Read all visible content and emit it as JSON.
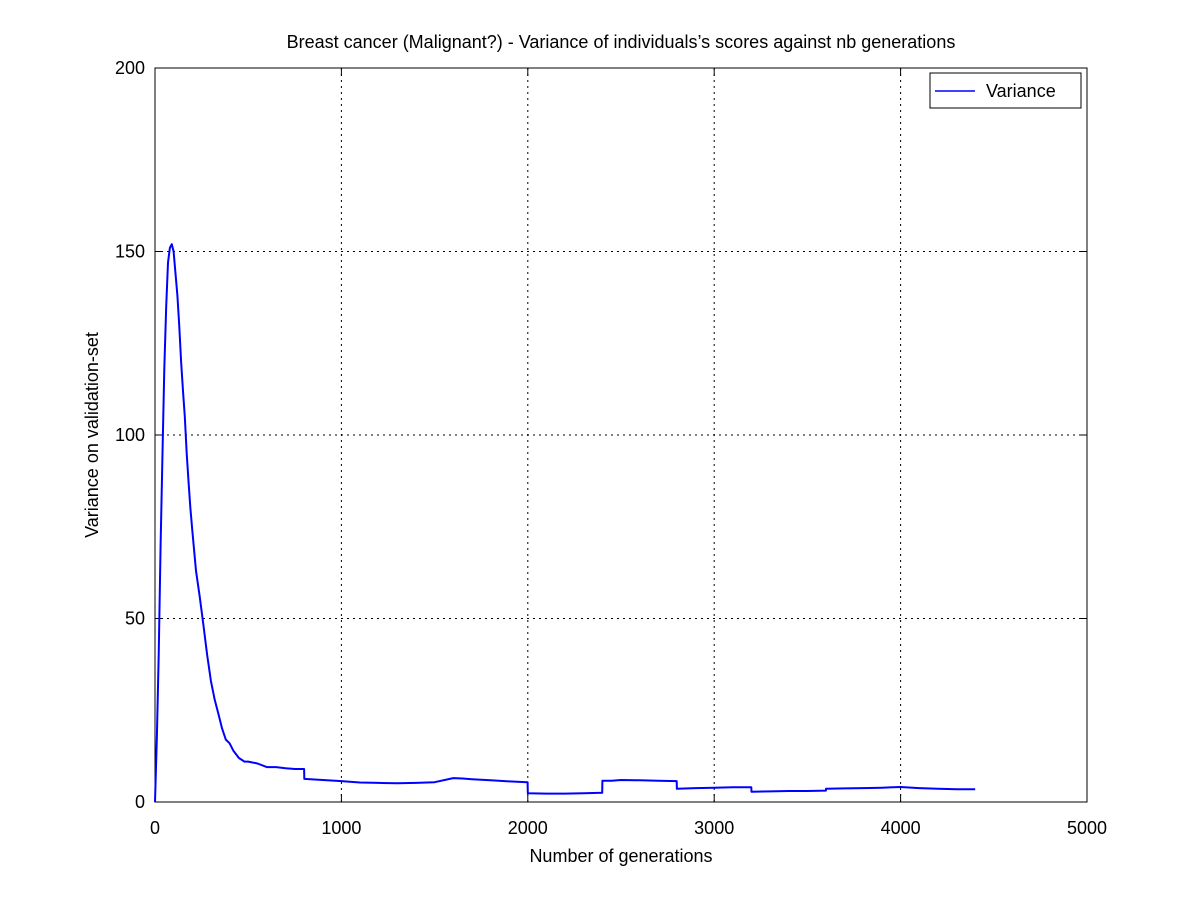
{
  "chart_data": {
    "type": "line",
    "title": "Breast cancer (Malignant?) - Variance of individuals’s scores against nb generations",
    "xlabel": "Number of generations",
    "ylabel": "Variance on validation-set",
    "xlim": [
      0,
      5000
    ],
    "ylim": [
      0,
      200
    ],
    "xticks": [
      "0",
      "1000",
      "2000",
      "3000",
      "4000",
      "5000"
    ],
    "yticks": [
      "0",
      "50",
      "100",
      "150",
      "200"
    ],
    "grid": true,
    "legend_position": "top-right",
    "series": [
      {
        "name": "Variance",
        "color": "#0000ff",
        "x": [
          0,
          10,
          20,
          30,
          40,
          50,
          60,
          70,
          80,
          90,
          100,
          110,
          120,
          130,
          140,
          150,
          160,
          170,
          180,
          190,
          200,
          220,
          240,
          260,
          280,
          300,
          320,
          340,
          360,
          380,
          400,
          420,
          450,
          480,
          500,
          550,
          600,
          650,
          700,
          750,
          800,
          801,
          900,
          1000,
          1100,
          1200,
          1300,
          1400,
          1500,
          1600,
          1650,
          1700,
          1800,
          1900,
          1999,
          2000,
          2100,
          2200,
          2300,
          2399,
          2400,
          2450,
          2500,
          2600,
          2700,
          2799,
          2800,
          2900,
          3000,
          3100,
          3199,
          3200,
          3300,
          3400,
          3500,
          3599,
          3600,
          3700,
          3800,
          3900,
          4000,
          4100,
          4200,
          4300,
          4400
        ],
        "y": [
          0,
          18,
          40,
          70,
          95,
          118,
          135,
          147,
          151,
          152,
          150,
          144,
          138,
          130,
          120,
          112,
          105,
          95,
          87,
          80,
          74,
          63,
          56,
          48,
          40,
          33,
          28,
          24,
          20,
          17,
          16,
          14,
          12,
          11,
          11,
          10.5,
          9.5,
          9.5,
          9.2,
          9,
          9,
          6.3,
          6,
          5.7,
          5.3,
          5.2,
          5.1,
          5.2,
          5.4,
          6.5,
          6.4,
          6.2,
          5.9,
          5.6,
          5.4,
          2.4,
          2.3,
          2.3,
          2.4,
          2.5,
          5.8,
          5.8,
          6,
          5.9,
          5.8,
          5.7,
          3.6,
          3.8,
          3.9,
          4,
          4,
          2.8,
          2.9,
          3,
          3,
          3.1,
          3.6,
          3.7,
          3.8,
          3.9,
          4.1,
          3.8,
          3.6,
          3.5,
          3.5
        ]
      }
    ]
  }
}
